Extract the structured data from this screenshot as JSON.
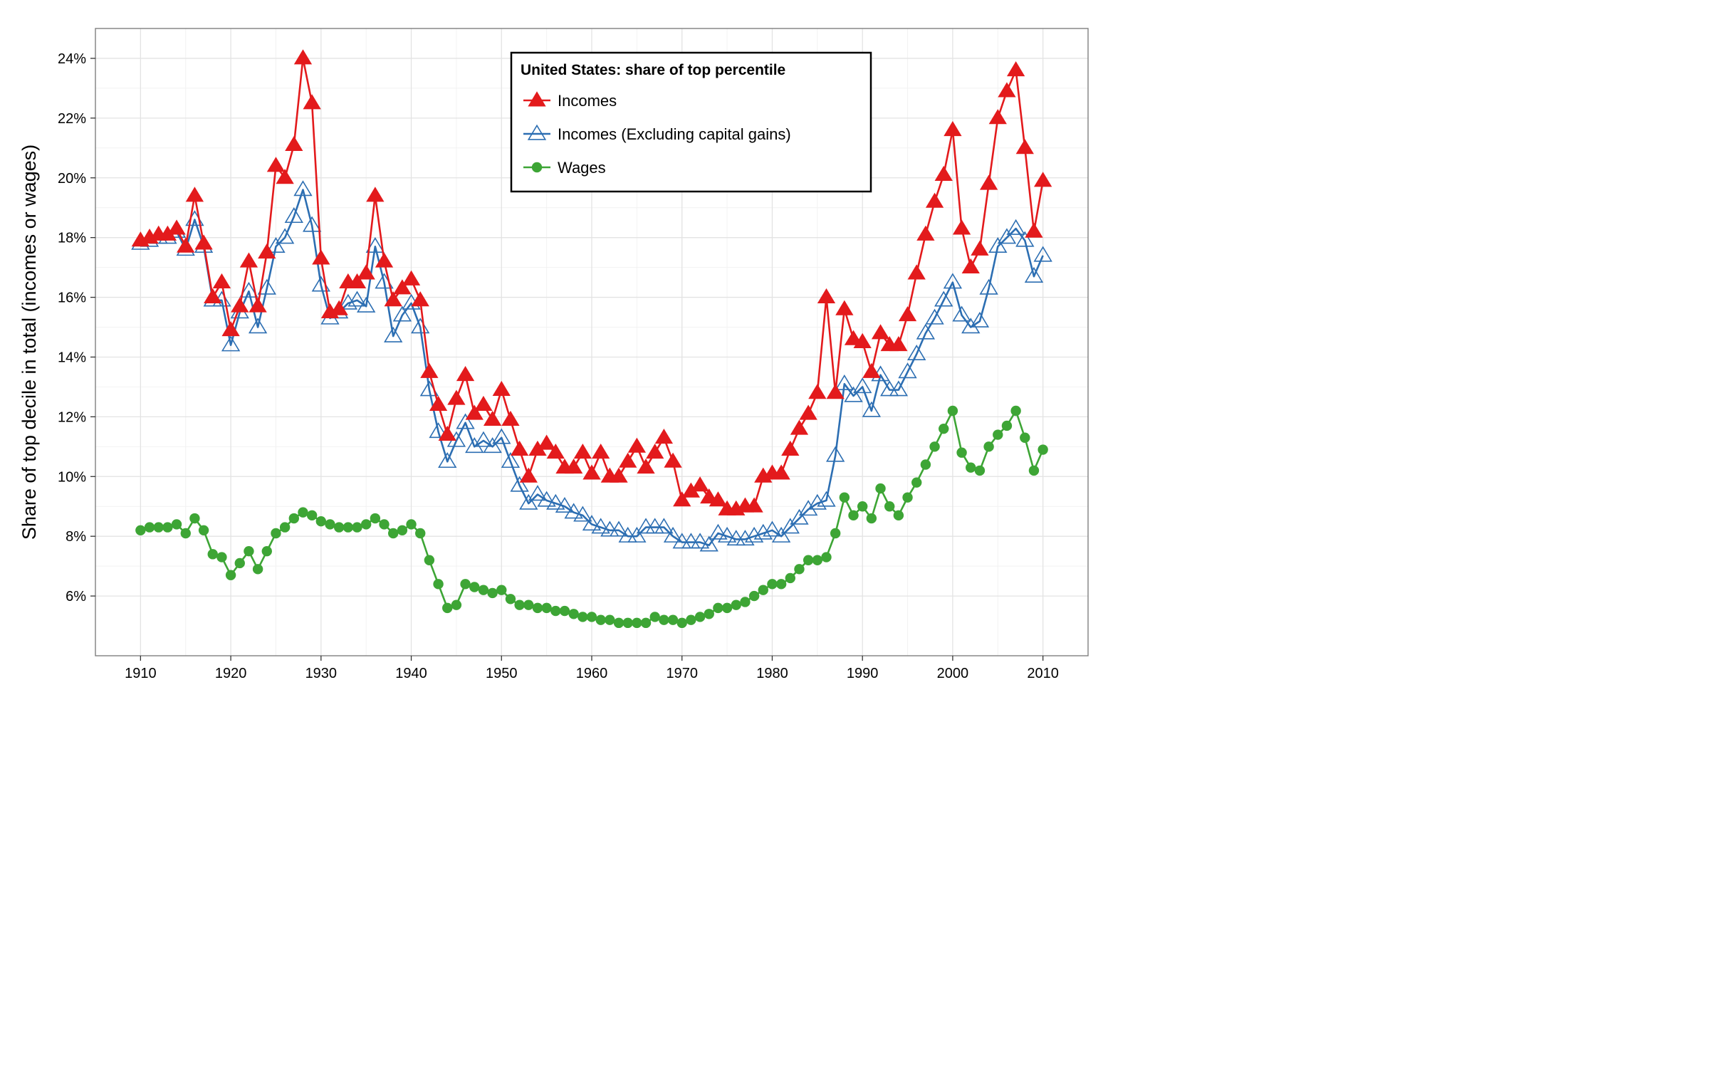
{
  "chart_data": {
    "type": "line",
    "legend": {
      "title": "United States: share of top percentile",
      "placement": "top-center"
    },
    "xlabel": "",
    "ylabel": "Share of top decile in total (incomes or wages)",
    "xlim": [
      1905,
      2015
    ],
    "ylim": [
      0.04,
      0.25
    ],
    "xticks": [
      1910,
      1920,
      1930,
      1940,
      1950,
      1960,
      1970,
      1980,
      1990,
      2000,
      2010
    ],
    "xtick_labels": [
      "1910",
      "1920",
      "1930",
      "1940",
      "1950",
      "1960",
      "1970",
      "1980",
      "1990",
      "2000",
      "2010"
    ],
    "yticks": [
      0.06,
      0.08,
      0.1,
      0.12,
      0.14,
      0.16,
      0.18,
      0.2,
      0.22,
      0.24
    ],
    "ytick_labels": [
      "6%",
      "8%",
      "10%",
      "12%",
      "14%",
      "16%",
      "18%",
      "20%",
      "22%",
      "24%"
    ],
    "grid": true,
    "x": [
      1910,
      1911,
      1912,
      1913,
      1914,
      1915,
      1916,
      1917,
      1918,
      1919,
      1920,
      1921,
      1922,
      1923,
      1924,
      1925,
      1926,
      1927,
      1928,
      1929,
      1930,
      1931,
      1932,
      1933,
      1934,
      1935,
      1936,
      1937,
      1938,
      1939,
      1940,
      1941,
      1942,
      1943,
      1944,
      1945,
      1946,
      1947,
      1948,
      1949,
      1950,
      1951,
      1952,
      1953,
      1954,
      1955,
      1956,
      1957,
      1958,
      1959,
      1960,
      1961,
      1962,
      1963,
      1964,
      1965,
      1966,
      1967,
      1968,
      1969,
      1970,
      1971,
      1972,
      1973,
      1974,
      1975,
      1976,
      1977,
      1978,
      1979,
      1980,
      1981,
      1982,
      1983,
      1984,
      1985,
      1986,
      1987,
      1988,
      1989,
      1990,
      1991,
      1992,
      1993,
      1994,
      1995,
      1996,
      1997,
      1998,
      1999,
      2000,
      2001,
      2002,
      2003,
      2004,
      2005,
      2006,
      2007,
      2008,
      2009,
      2010
    ],
    "series": [
      {
        "name": "Incomes",
        "color": "#e31a1c",
        "marker": "filled-triangle",
        "values": [
          0.179,
          0.18,
          0.181,
          0.181,
          0.183,
          0.177,
          0.194,
          0.178,
          0.16,
          0.165,
          0.149,
          0.157,
          0.172,
          0.157,
          0.175,
          0.204,
          0.2,
          0.211,
          0.24,
          0.225,
          0.173,
          0.155,
          0.156,
          0.165,
          0.165,
          0.168,
          0.194,
          0.172,
          0.159,
          0.163,
          0.166,
          0.159,
          0.135,
          0.124,
          0.114,
          0.126,
          0.134,
          0.121,
          0.124,
          0.119,
          0.129,
          0.119,
          0.109,
          0.1,
          0.109,
          0.111,
          0.108,
          0.103,
          0.103,
          0.108,
          0.101,
          0.108,
          0.1,
          0.1,
          0.105,
          0.11,
          0.103,
          0.108,
          0.113,
          0.105,
          0.092,
          0.095,
          0.097,
          0.093,
          0.092,
          0.089,
          0.089,
          0.09,
          0.09,
          0.1,
          0.101,
          0.101,
          0.109,
          0.116,
          0.121,
          0.128,
          0.16,
          0.128,
          0.156,
          0.146,
          0.145,
          0.135,
          0.148,
          0.144,
          0.144,
          0.154,
          0.168,
          0.181,
          0.192,
          0.201,
          0.216,
          0.183,
          0.17,
          0.176,
          0.198,
          0.22,
          0.229,
          0.236,
          0.21,
          0.182,
          0.199
        ]
      },
      {
        "name": "Incomes (Excluding capital gains)",
        "color": "#2c6eb2",
        "marker": "open-triangle",
        "values": [
          0.178,
          0.179,
          0.18,
          0.18,
          0.182,
          0.176,
          0.186,
          0.177,
          0.159,
          0.159,
          0.144,
          0.155,
          0.162,
          0.15,
          0.163,
          0.177,
          0.18,
          0.187,
          0.196,
          0.184,
          0.164,
          0.153,
          0.155,
          0.158,
          0.159,
          0.157,
          0.177,
          0.165,
          0.147,
          0.154,
          0.158,
          0.15,
          0.129,
          0.115,
          0.105,
          0.112,
          0.118,
          0.11,
          0.112,
          0.11,
          0.113,
          0.105,
          0.097,
          0.091,
          0.094,
          0.092,
          0.091,
          0.09,
          0.088,
          0.087,
          0.084,
          0.083,
          0.082,
          0.082,
          0.08,
          0.08,
          0.083,
          0.083,
          0.083,
          0.08,
          0.078,
          0.078,
          0.078,
          0.077,
          0.081,
          0.08,
          0.079,
          0.079,
          0.08,
          0.081,
          0.082,
          0.08,
          0.083,
          0.086,
          0.089,
          0.091,
          0.092,
          0.107,
          0.131,
          0.127,
          0.13,
          0.122,
          0.134,
          0.129,
          0.129,
          0.135,
          0.141,
          0.148,
          0.153,
          0.159,
          0.165,
          0.154,
          0.15,
          0.152,
          0.163,
          0.177,
          0.18,
          0.183,
          0.179,
          0.167,
          0.174
        ]
      },
      {
        "name": "Wages",
        "color": "#3da535",
        "marker": "filled-circle",
        "values": [
          0.082,
          0.083,
          0.083,
          0.083,
          0.084,
          0.081,
          0.086,
          0.082,
          0.074,
          0.073,
          0.067,
          0.071,
          0.075,
          0.069,
          0.075,
          0.081,
          0.083,
          0.086,
          0.088,
          0.087,
          0.085,
          0.084,
          0.083,
          0.083,
          0.083,
          0.084,
          0.086,
          0.084,
          0.081,
          0.082,
          0.084,
          0.081,
          0.072,
          0.064,
          0.056,
          0.057,
          0.064,
          0.063,
          0.062,
          0.061,
          0.062,
          0.059,
          0.057,
          0.057,
          0.056,
          0.056,
          0.055,
          0.055,
          0.054,
          0.053,
          0.053,
          0.052,
          0.052,
          0.051,
          0.051,
          0.051,
          0.051,
          0.053,
          0.052,
          0.052,
          0.051,
          0.052,
          0.053,
          0.054,
          0.056,
          0.056,
          0.057,
          0.058,
          0.06,
          0.062,
          0.064,
          0.064,
          0.066,
          0.069,
          0.072,
          0.072,
          0.073,
          0.081,
          0.093,
          0.087,
          0.09,
          0.086,
          0.096,
          0.09,
          0.087,
          0.093,
          0.098,
          0.104,
          0.11,
          0.116,
          0.122,
          0.108,
          0.103,
          0.102,
          0.11,
          0.114,
          0.117,
          0.122,
          0.113,
          0.102,
          0.109
        ]
      }
    ]
  }
}
